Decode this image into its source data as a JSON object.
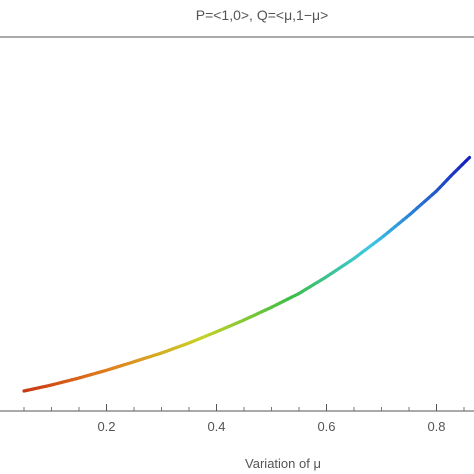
{
  "chart_data": {
    "type": "line",
    "title": "P=<1,0>, Q=<μ,1−μ>",
    "xlabel": "Variation of μ",
    "ylabel": "",
    "xlim": [
      0.05,
      0.86
    ],
    "ylim": [
      0.0,
      1.0
    ],
    "x_ticks": [
      0.2,
      0.4,
      0.6,
      0.8
    ],
    "x_tick_labels": [
      "0.2",
      "0.4",
      "0.6",
      "0.8"
    ],
    "grid": false,
    "colormap": "rainbow (red at low μ → blue at high μ)",
    "series": [
      {
        "x": [
          0.05,
          0.1,
          0.15,
          0.2,
          0.25,
          0.3,
          0.35,
          0.4,
          0.45,
          0.5,
          0.55,
          0.6,
          0.65,
          0.7,
          0.75,
          0.8,
          0.83,
          0.86
        ],
        "y": [
          0.0,
          0.024,
          0.052,
          0.083,
          0.117,
          0.152,
          0.192,
          0.237,
          0.284,
          0.335,
          0.39,
          0.457,
          0.53,
          0.613,
          0.703,
          0.8,
          0.869,
          0.934
        ]
      }
    ]
  }
}
